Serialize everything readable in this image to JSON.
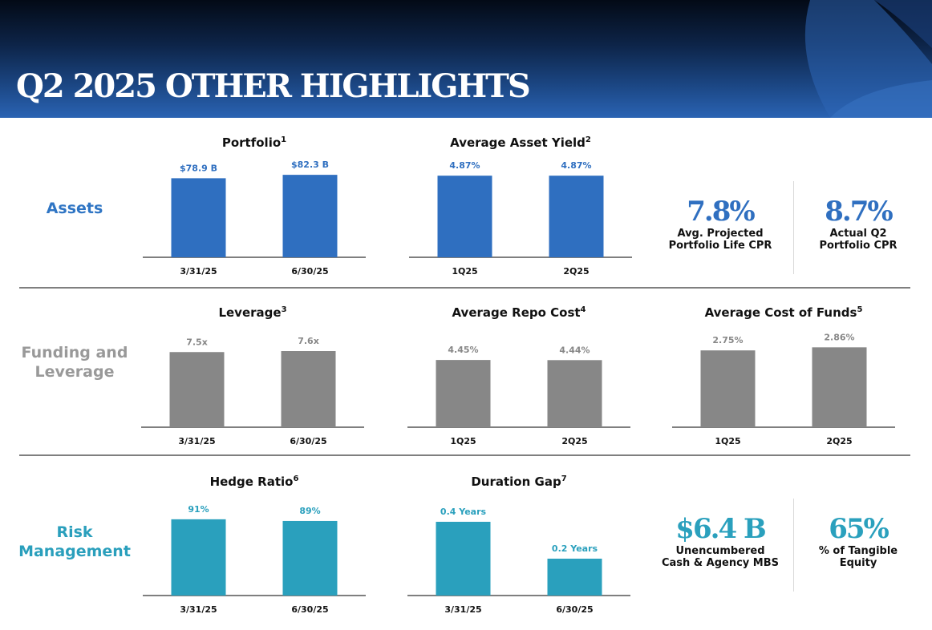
{
  "header": {
    "title": "Q2 2025 OTHER HIGHLIGHTS"
  },
  "sections": {
    "assets": {
      "label": "Assets",
      "color": "#2f75c4"
    },
    "funding": {
      "label_line1": "Funding and",
      "label_line2": "Leverage",
      "color": "#999999"
    },
    "risk": {
      "label_line1": "Risk",
      "label_line2": "Management",
      "color": "#2a9fbc"
    }
  },
  "colors": {
    "assets_bar": "#2f6fc0",
    "funding_bar": "#878787",
    "risk_bar": "#2aa0bd",
    "axis": "#7f7f7f",
    "category_text": "#111111"
  },
  "kpis": {
    "avg_projected_cpr": {
      "value": "7.8%",
      "caption_line1": "Avg. Projected",
      "caption_line2": "Portfolio Life CPR",
      "color": "#2f6fc0"
    },
    "actual_q2_cpr": {
      "value": "8.7%",
      "caption_line1": "Actual Q2",
      "caption_line2": "Portfolio CPR",
      "color": "#2f6fc0"
    },
    "unencumbered": {
      "value": "$6.4 B",
      "caption_line1": "Unencumbered",
      "caption_line2": "Cash & Agency MBS",
      "color": "#2aa0bd"
    },
    "tangible_equity": {
      "value": "65%",
      "caption_line1": "% of Tangible",
      "caption_line2": "Equity",
      "color": "#2aa0bd"
    }
  },
  "chart_data": [
    {
      "id": "portfolio",
      "type": "bar",
      "title": "Portfolio",
      "footnote": "1",
      "categories": [
        "3/31/25",
        "6/30/25"
      ],
      "values": [
        78.9,
        82.3
      ],
      "data_labels": [
        "$78.9 B",
        "$82.3 B"
      ],
      "ylim": [
        0,
        92
      ]
    },
    {
      "id": "asset-yield",
      "type": "bar",
      "title": "Average Asset Yield",
      "footnote": "2",
      "categories": [
        "1Q25",
        "2Q25"
      ],
      "values": [
        4.87,
        4.87
      ],
      "data_labels": [
        "4.87%",
        "4.87%"
      ],
      "ylim": [
        0,
        5.5
      ]
    },
    {
      "id": "leverage",
      "type": "bar",
      "title": "Leverage",
      "footnote": "3",
      "categories": [
        "3/31/25",
        "6/30/25"
      ],
      "values": [
        7.5,
        7.6
      ],
      "data_labels": [
        "7.5x",
        "7.6x"
      ],
      "ylim": [
        0,
        9.2
      ]
    },
    {
      "id": "repo-cost",
      "type": "bar",
      "title": "Average Repo Cost",
      "footnote": "4",
      "categories": [
        "1Q25",
        "2Q25"
      ],
      "values": [
        4.45,
        4.44
      ],
      "data_labels": [
        "4.45%",
        "4.44%"
      ],
      "ylim": [
        0,
        6.1
      ]
    },
    {
      "id": "cost-of-funds",
      "type": "bar",
      "title": "Average Cost of Funds",
      "footnote": "5",
      "categories": [
        "1Q25",
        "2Q25"
      ],
      "values": [
        2.75,
        2.86
      ],
      "data_labels": [
        "2.75%",
        "2.86%"
      ],
      "ylim": [
        0,
        3.3
      ]
    },
    {
      "id": "hedge-ratio",
      "type": "bar",
      "title": "Hedge Ratio",
      "footnote": "6",
      "categories": [
        "3/31/25",
        "6/30/25"
      ],
      "values": [
        91,
        89
      ],
      "data_labels": [
        "91%",
        "89%"
      ],
      "ylim": [
        0,
        110
      ]
    },
    {
      "id": "duration-gap",
      "type": "bar",
      "title": "Duration Gap",
      "footnote": "7",
      "categories": [
        "3/31/25",
        "6/30/25"
      ],
      "values": [
        0.4,
        0.2
      ],
      "data_labels": [
        "0.4 Years",
        "0.2 Years"
      ],
      "ylim": [
        0,
        0.5
      ]
    }
  ]
}
